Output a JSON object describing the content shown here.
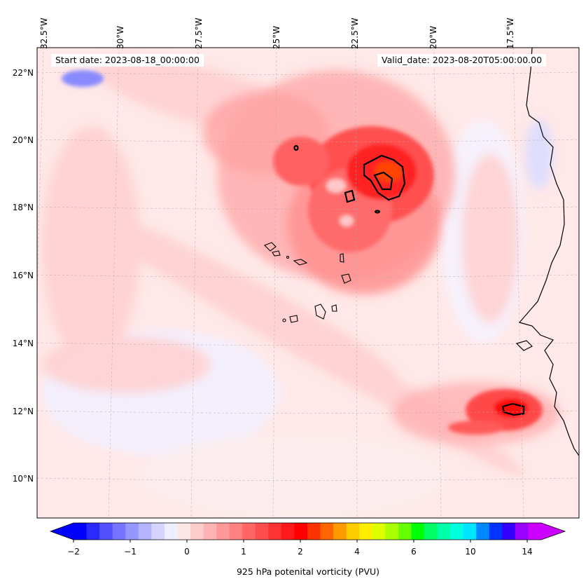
{
  "map": {
    "start_date": "Start date: 2023-08-18_00:00:00",
    "valid_date": "Valid_date: 2023-08-20T05:00:00.00",
    "lat_labels": [
      "22°N",
      "20°N",
      "18°N",
      "16°N",
      "14°N",
      "12°N",
      "10°N"
    ],
    "lon_labels": [
      "32.5°W",
      "30°W",
      "27.5°W",
      "25°W",
      "22.5°W",
      "20°W",
      "17.5°W"
    ]
  },
  "colorbar": {
    "title": "925 hPa potenital vorticity (PVU)",
    "tick_labels": [
      "−2",
      "−1",
      "0",
      "1",
      "2",
      "4",
      "6",
      "10",
      "14"
    ],
    "colors": [
      "#0000ff",
      "#2a2aff",
      "#5050ff",
      "#7575ff",
      "#9696ff",
      "#b4b4ff",
      "#d4d4ff",
      "#eeeeff",
      "#ffe6e6",
      "#ffcccc",
      "#ffb3b3",
      "#ff9999",
      "#ff8080",
      "#ff6666",
      "#ff4d4d",
      "#ff3333",
      "#ff1a1a",
      "#ff0000",
      "#ff3300",
      "#ff6600",
      "#ff9900",
      "#ffcc00",
      "#ffee00",
      "#ddff00",
      "#aaff00",
      "#66ff00",
      "#00ff00",
      "#00ff66",
      "#00ffaa",
      "#00ffdd",
      "#00e5ff",
      "#0088ff",
      "#0033ff",
      "#3300ff",
      "#9900ff",
      "#cc00ff"
    ]
  }
}
